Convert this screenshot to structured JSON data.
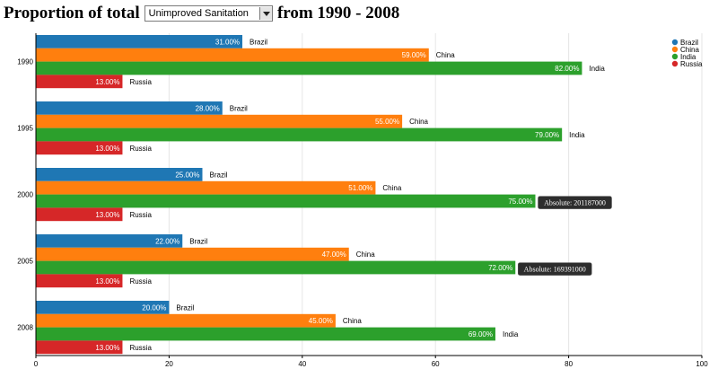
{
  "header": {
    "prefix": "Proportion of total",
    "select_value": "Unimproved Sanitation",
    "suffix": "from 1990 - 2008"
  },
  "chart_data": {
    "type": "bar",
    "orientation": "horizontal",
    "categories": [
      "1990",
      "1995",
      "2000",
      "2005",
      "2008"
    ],
    "series": [
      {
        "name": "Brazil",
        "color": "#1f77b4",
        "values": [
          31,
          28,
          25,
          22,
          20
        ],
        "labels": [
          "31.00%",
          "28.00%",
          "25.00%",
          "22.00%",
          "20.00%"
        ]
      },
      {
        "name": "China",
        "color": "#ff7f0e",
        "values": [
          59,
          55,
          51,
          47,
          45
        ],
        "labels": [
          "59.00%",
          "55.00%",
          "51.00%",
          "47.00%",
          "45.00%"
        ]
      },
      {
        "name": "India",
        "color": "#2ca02c",
        "values": [
          82,
          79,
          75,
          72,
          69
        ],
        "labels": [
          "82.00%",
          "79.00%",
          "75.00%",
          "72.00%",
          "69.00%"
        ]
      },
      {
        "name": "Russia",
        "color": "#d62728",
        "values": [
          13,
          13,
          13,
          13,
          13
        ],
        "labels": [
          "13.00%",
          "13.00%",
          "13.00%",
          "13.00%",
          "13.00%"
        ]
      }
    ],
    "xlim": [
      0,
      100
    ],
    "xticks": [
      0,
      20,
      40,
      60,
      80,
      100
    ],
    "grid": true,
    "legend_position": "top-right",
    "tooltips": [
      {
        "category": "2000",
        "series": "India",
        "text": "Absolute: 201187000"
      },
      {
        "category": "2005",
        "series": "India",
        "text": "Absolute: 169391000"
      }
    ]
  }
}
